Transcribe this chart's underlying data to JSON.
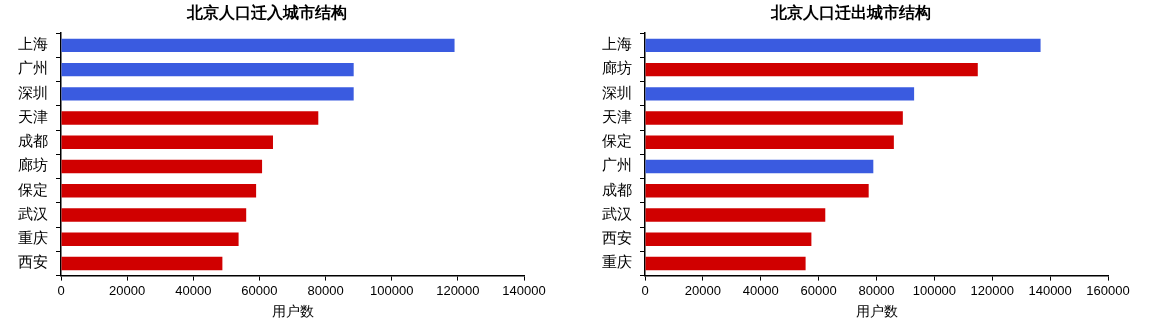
{
  "chart_data": [
    {
      "type": "bar",
      "orientation": "horizontal",
      "title": "北京人口迁入城市结构",
      "xlabel": "用户数",
      "categories": [
        "上海",
        "广州",
        "深圳",
        "天津",
        "成都",
        "廊坊",
        "保定",
        "武汉",
        "重庆",
        "西安"
      ],
      "values": [
        119000,
        88500,
        88500,
        77800,
        64100,
        60800,
        59000,
        56000,
        53700,
        48800
      ],
      "colors": [
        "#3a5be0",
        "#3a5be0",
        "#3a5be0",
        "#d00000",
        "#d00000",
        "#d00000",
        "#d00000",
        "#d00000",
        "#d00000",
        "#d00000"
      ],
      "xlim": [
        0,
        140000
      ],
      "xticks": [
        0,
        20000,
        40000,
        60000,
        80000,
        100000,
        120000,
        140000
      ],
      "grid": false,
      "legend": false
    },
    {
      "type": "bar",
      "orientation": "horizontal",
      "title": "北京人口迁出城市结构",
      "xlabel": "用户数",
      "categories": [
        "上海",
        "廊坊",
        "深圳",
        "天津",
        "保定",
        "广州",
        "成都",
        "武汉",
        "西安",
        "重庆"
      ],
      "values": [
        136700,
        115000,
        93000,
        89100,
        86000,
        78900,
        77300,
        62300,
        57500,
        55500
      ],
      "colors": [
        "#3a5be0",
        "#d00000",
        "#3a5be0",
        "#d00000",
        "#d00000",
        "#3a5be0",
        "#d00000",
        "#d00000",
        "#d00000",
        "#d00000"
      ],
      "xlim": [
        0,
        160000
      ],
      "xticks": [
        0,
        20000,
        40000,
        60000,
        80000,
        100000,
        120000,
        140000,
        160000
      ],
      "grid": false,
      "legend": false
    }
  ]
}
